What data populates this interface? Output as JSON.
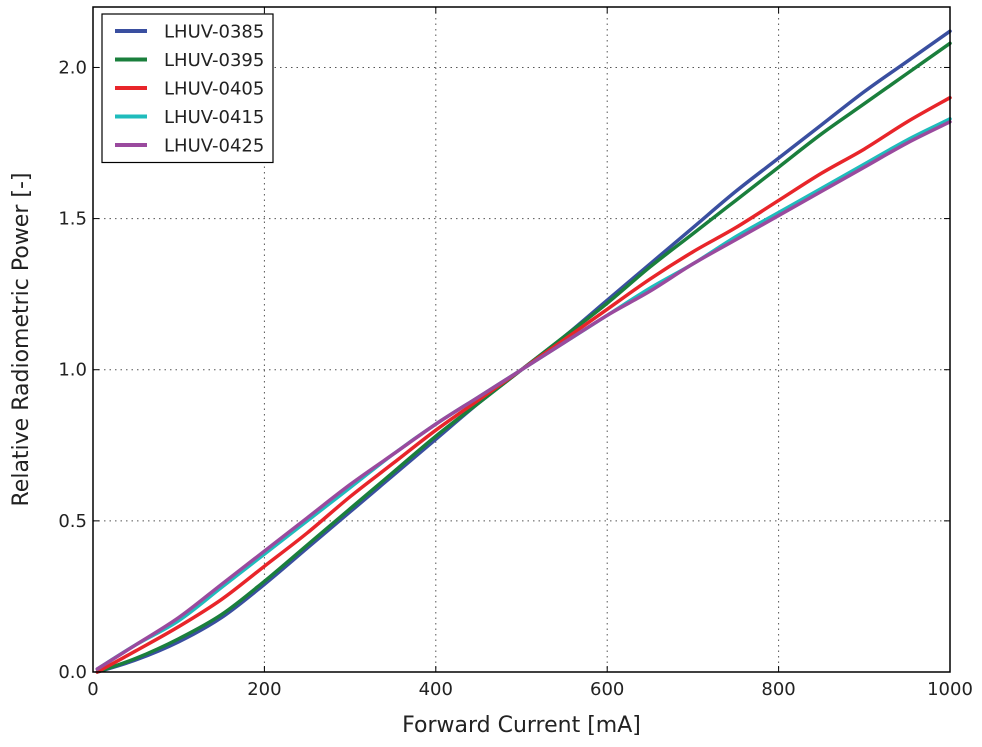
{
  "chart_data": {
    "type": "line",
    "title": "",
    "xlabel": "Forward Current [mA]",
    "ylabel": "Relative Radiometric Power [-]",
    "xlim": [
      0,
      1000
    ],
    "ylim": [
      0.0,
      2.2
    ],
    "xticks": [
      0,
      200,
      400,
      600,
      800,
      1000
    ],
    "xtick_labels": [
      "0",
      "200",
      "400",
      "600",
      "800",
      "1000"
    ],
    "yticks": [
      0.0,
      0.5,
      1.0,
      1.5,
      2.0
    ],
    "ytick_labels": [
      "0.0",
      "0.5",
      "1.0",
      "1.5",
      "2.0"
    ],
    "grid": true,
    "legend_position": "top-left",
    "x": [
      5,
      50,
      100,
      150,
      200,
      250,
      300,
      350,
      400,
      450,
      500,
      550,
      600,
      650,
      700,
      750,
      800,
      850,
      900,
      950,
      1000
    ],
    "series": [
      {
        "name": "LHUV-0385",
        "color": "#3a4fa0",
        "values": [
          0.0,
          0.04,
          0.1,
          0.18,
          0.29,
          0.41,
          0.53,
          0.65,
          0.77,
          0.89,
          1.0,
          1.11,
          1.23,
          1.35,
          1.47,
          1.59,
          1.7,
          1.81,
          1.92,
          2.02,
          2.12
        ]
      },
      {
        "name": "LHUV-0395",
        "color": "#1a7f3c",
        "values": [
          0.0,
          0.045,
          0.11,
          0.19,
          0.3,
          0.42,
          0.54,
          0.66,
          0.78,
          0.89,
          1.0,
          1.11,
          1.22,
          1.34,
          1.45,
          1.56,
          1.67,
          1.78,
          1.88,
          1.98,
          2.08
        ]
      },
      {
        "name": "LHUV-0405",
        "color": "#e8252a",
        "values": [
          0.0,
          0.07,
          0.15,
          0.24,
          0.35,
          0.46,
          0.58,
          0.69,
          0.8,
          0.9,
          1.0,
          1.1,
          1.2,
          1.3,
          1.39,
          1.47,
          1.56,
          1.65,
          1.73,
          1.82,
          1.9
        ]
      },
      {
        "name": "LHUV-0415",
        "color": "#1fbcbc",
        "values": [
          0.01,
          0.09,
          0.17,
          0.28,
          0.39,
          0.5,
          0.61,
          0.72,
          0.82,
          0.91,
          1.0,
          1.09,
          1.18,
          1.27,
          1.35,
          1.44,
          1.52,
          1.6,
          1.68,
          1.76,
          1.83
        ]
      },
      {
        "name": "LHUV-0425",
        "color": "#9a4a9e",
        "values": [
          0.01,
          0.09,
          0.18,
          0.29,
          0.4,
          0.51,
          0.62,
          0.72,
          0.82,
          0.91,
          1.0,
          1.09,
          1.18,
          1.26,
          1.35,
          1.43,
          1.51,
          1.59,
          1.67,
          1.75,
          1.82
        ]
      }
    ]
  }
}
